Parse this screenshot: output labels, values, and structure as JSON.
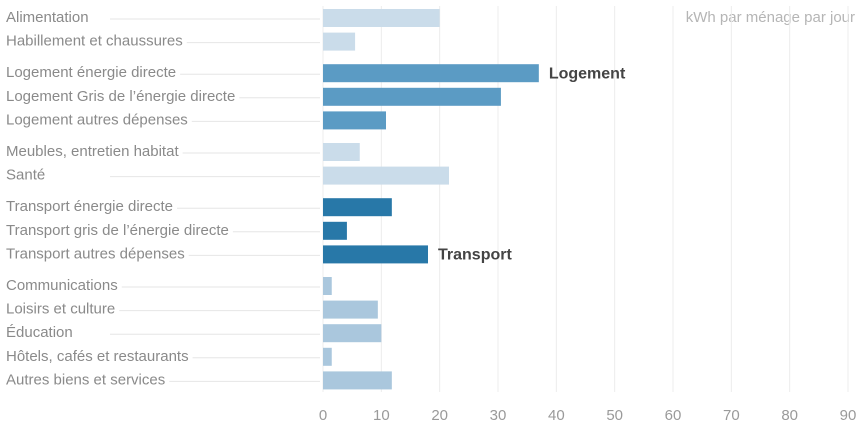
{
  "chart_data": {
    "type": "bar",
    "orientation": "horizontal",
    "unit_label": "kWh par ménage par jour",
    "categories": [
      "Alimentation",
      "Habillement et chaussures",
      "Logement énergie directe",
      "Logement Gris de l’énergie directe",
      "Logement autres dépenses",
      "Meubles, entretien habitat",
      "Santé",
      "Transport énergie directe",
      "Transport gris de l’énergie directe",
      "Transport autres dépenses",
      "Communications",
      "Loisirs et culture",
      "Éducation",
      "Hôtels, cafés et restaurants",
      "Autres biens et services"
    ],
    "values": [
      20,
      5.5,
      37,
      30.5,
      10.8,
      6.3,
      21.6,
      11.8,
      4.1,
      18,
      1.5,
      9.4,
      10,
      1.5,
      11.8
    ],
    "colors": [
      "#cadcea",
      "#cadcea",
      "#5b9bc4",
      "#5b9bc4",
      "#5b9bc4",
      "#cadcea",
      "#cadcea",
      "#2878a8",
      "#2878a8",
      "#2878a8",
      "#aac7dd",
      "#aac7dd",
      "#aac7dd",
      "#aac7dd",
      "#aac7dd"
    ],
    "annotations": [
      {
        "text": "Logement",
        "category": "Logement énergie directe"
      },
      {
        "text": "Transport",
        "category": "Transport autres dépenses"
      }
    ],
    "xlim": [
      0,
      90
    ],
    "xticks": [
      0,
      10,
      20,
      30,
      40,
      50,
      60,
      70,
      80,
      90
    ],
    "grid": true
  }
}
